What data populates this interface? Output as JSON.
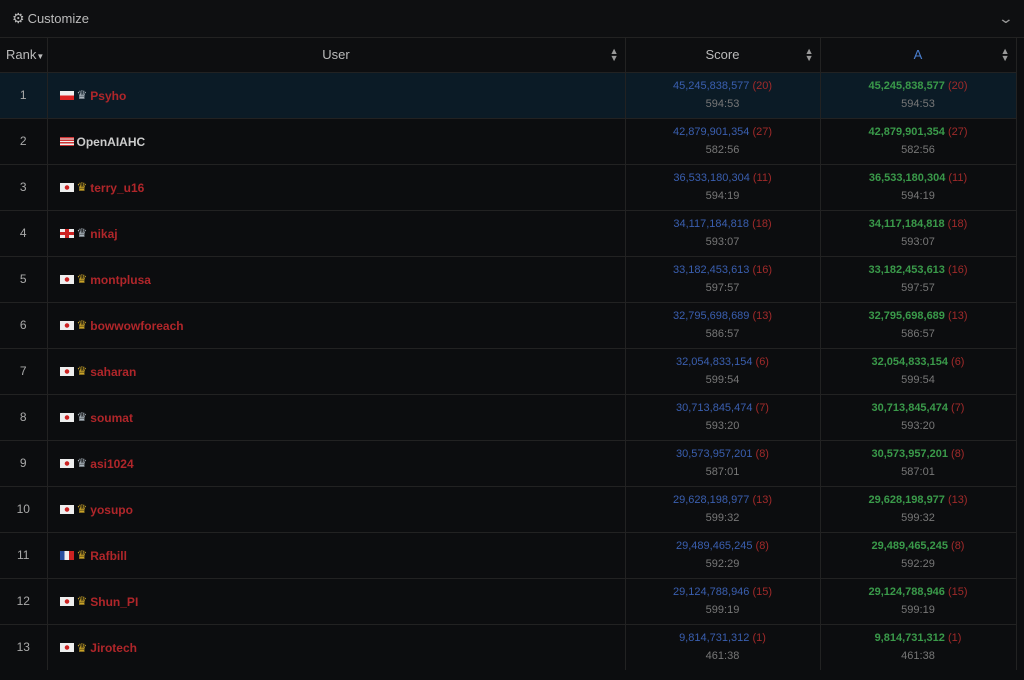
{
  "topbar": {
    "title": "Customize",
    "icon": "gear-icon"
  },
  "headers": {
    "rank": "Rank",
    "user": "User",
    "score": "Score",
    "a": "A"
  },
  "rows": [
    {
      "rank": "1",
      "flag": "PL",
      "crown": "silver",
      "user": "Psyho",
      "score": "45,245,838,577",
      "count": "(20)",
      "time": "594:53",
      "highlight": true
    },
    {
      "rank": "2",
      "flag": "US",
      "crown": "",
      "user": "OpenAIAHC",
      "score": "42,879,901,354",
      "count": "(27)",
      "time": "582:56"
    },
    {
      "rank": "3",
      "flag": "JP",
      "crown": "gold",
      "user": "terry_u16",
      "score": "36,533,180,304",
      "count": "(11)",
      "time": "594:19"
    },
    {
      "rank": "4",
      "flag": "GB",
      "crown": "silver",
      "user": "nikaj",
      "score": "34,117,184,818",
      "count": "(18)",
      "time": "593:07"
    },
    {
      "rank": "5",
      "flag": "JP",
      "crown": "gold",
      "user": "montplusa",
      "score": "33,182,453,613",
      "count": "(16)",
      "time": "597:57"
    },
    {
      "rank": "6",
      "flag": "JP",
      "crown": "gold",
      "user": "bowwowforeach",
      "score": "32,795,698,689",
      "count": "(13)",
      "time": "586:57"
    },
    {
      "rank": "7",
      "flag": "JP",
      "crown": "gold",
      "user": "saharan",
      "score": "32,054,833,154",
      "count": "(6)",
      "time": "599:54"
    },
    {
      "rank": "8",
      "flag": "JP",
      "crown": "silver",
      "user": "soumat",
      "score": "30,713,845,474",
      "count": "(7)",
      "time": "593:20"
    },
    {
      "rank": "9",
      "flag": "JP",
      "crown": "silver",
      "user": "asi1024",
      "score": "30,573,957,201",
      "count": "(8)",
      "time": "587:01"
    },
    {
      "rank": "10",
      "flag": "JP",
      "crown": "gold",
      "user": "yosupo",
      "score": "29,628,198,977",
      "count": "(13)",
      "time": "599:32"
    },
    {
      "rank": "11",
      "flag": "FR",
      "crown": "gold",
      "user": "Rafbill",
      "score": "29,489,465,245",
      "count": "(8)",
      "time": "592:29"
    },
    {
      "rank": "12",
      "flag": "JP",
      "crown": "gold",
      "user": "Shun_PI",
      "score": "29,124,788,946",
      "count": "(15)",
      "time": "599:19"
    },
    {
      "rank": "13",
      "flag": "JP",
      "crown": "gold",
      "user": "Jirotech",
      "score": "9,814,731,312",
      "count": "(1)",
      "time": "461:38"
    }
  ],
  "colors": {
    "score": "#3a5fb0",
    "a_score": "#3a9a4a",
    "count": "#a02a2a",
    "user": "#b0262a",
    "gold_crown": "#c9a227",
    "silver_crown": "#aab4bc",
    "highlight": "#0b1b26"
  }
}
